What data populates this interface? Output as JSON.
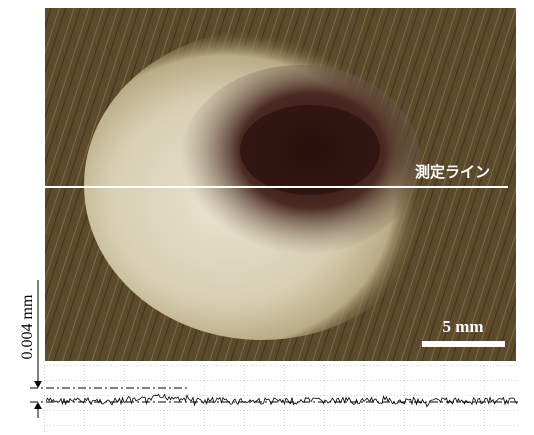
{
  "image": {
    "measurement_line_label": "測定ライン",
    "scale_bar_label": "5 mm"
  },
  "profile": {
    "scale_label": "0.004 mm"
  }
}
